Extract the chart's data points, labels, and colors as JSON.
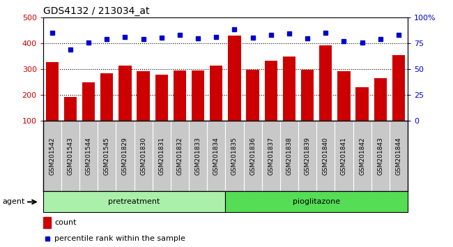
{
  "title": "GDS4132 / 213034_at",
  "samples": [
    "GSM201542",
    "GSM201543",
    "GSM201544",
    "GSM201545",
    "GSM201829",
    "GSM201830",
    "GSM201831",
    "GSM201832",
    "GSM201833",
    "GSM201834",
    "GSM201835",
    "GSM201836",
    "GSM201837",
    "GSM201838",
    "GSM201839",
    "GSM201840",
    "GSM201841",
    "GSM201842",
    "GSM201843",
    "GSM201844"
  ],
  "counts": [
    328,
    193,
    249,
    283,
    315,
    293,
    278,
    294,
    295,
    315,
    430,
    298,
    332,
    349,
    297,
    393,
    293,
    230,
    265,
    355
  ],
  "pct_raw": [
    440,
    375,
    403,
    415,
    423,
    416,
    421,
    431,
    420,
    425,
    455,
    421,
    431,
    437,
    420,
    440,
    409,
    403,
    415,
    431
  ],
  "group1_label": "pretreatment",
  "group1_count": 10,
  "group2_label": "pioglitazone",
  "group2_count": 10,
  "ylim_left": [
    100,
    500
  ],
  "ylim_right": [
    0,
    100
  ],
  "bar_color": "#cc0000",
  "dot_color": "#0000cc",
  "bg_color": "#c8c8c8",
  "group1_color": "#aaf0aa",
  "group2_color": "#55dd55",
  "agent_label": "agent",
  "count_label": "count",
  "pct_label": "percentile rank within the sample"
}
